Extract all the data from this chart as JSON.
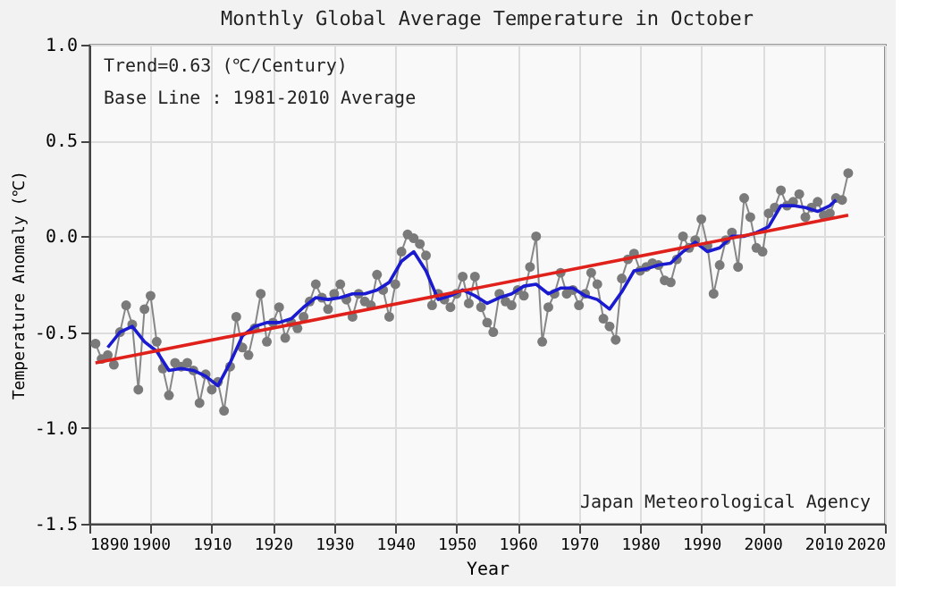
{
  "chart_data": {
    "type": "line",
    "title": "Monthly Global Average Temperature in October",
    "xlabel": "Year",
    "ylabel": "Temperature Anomaly (℃)",
    "annotations": [
      "Trend=0.63 (℃/Century)",
      "Base Line : 1981-2010 Average",
      "Japan Meteorological Agency"
    ],
    "xlim": [
      1890,
      2020
    ],
    "xticks": [
      1890,
      1900,
      1910,
      1920,
      1930,
      1940,
      1950,
      1960,
      1970,
      1980,
      1990,
      2000,
      2010,
      2020
    ],
    "ylim": [
      -1.5,
      1.0
    ],
    "yticks": [
      {
        "value": -1.5,
        "label": "-1.5"
      },
      {
        "value": -1.0,
        "label": "-1.0"
      },
      {
        "value": -0.5,
        "label": "-0.5"
      },
      {
        "value": 0,
        "label": "0.0"
      },
      {
        "value": 0.5,
        "label": "0.5"
      },
      {
        "value": 1.0,
        "label": "1.0"
      }
    ],
    "grid": true,
    "series": [
      {
        "color": "#7a7a7a",
        "marker": "circle",
        "x": [
          1891,
          1892,
          1893,
          1894,
          1895,
          1896,
          1897,
          1898,
          1899,
          1900,
          1901,
          1902,
          1903,
          1904,
          1905,
          1906,
          1907,
          1908,
          1909,
          1910,
          1911,
          1912,
          1913,
          1914,
          1915,
          1916,
          1917,
          1918,
          1919,
          1920,
          1921,
          1922,
          1923,
          1924,
          1925,
          1926,
          1927,
          1928,
          1929,
          1930,
          1931,
          1932,
          1933,
          1934,
          1935,
          1936,
          1937,
          1938,
          1939,
          1940,
          1941,
          1942,
          1943,
          1944,
          1945,
          1946,
          1947,
          1948,
          1949,
          1950,
          1951,
          1952,
          1953,
          1954,
          1955,
          1956,
          1957,
          1958,
          1959,
          1960,
          1961,
          1962,
          1963,
          1964,
          1965,
          1966,
          1967,
          1968,
          1969,
          1970,
          1971,
          1972,
          1973,
          1974,
          1975,
          1976,
          1977,
          1978,
          1979,
          1980,
          1981,
          1982,
          1983,
          1984,
          1985,
          1986,
          1987,
          1988,
          1989,
          1990,
          1991,
          1992,
          1993,
          1994,
          1995,
          1996,
          1997,
          1998,
          1999,
          2000,
          2001,
          2002,
          2003,
          2004,
          2005,
          2006,
          2007,
          2008,
          2009,
          2010,
          2011,
          2012,
          2013,
          2014
        ],
        "values": [
          -0.56,
          -0.64,
          -0.62,
          -0.67,
          -0.5,
          -0.36,
          -0.46,
          -0.8,
          -0.38,
          -0.31,
          -0.55,
          -0.69,
          -0.83,
          -0.66,
          -0.68,
          -0.66,
          -0.7,
          -0.87,
          -0.72,
          -0.8,
          -0.76,
          -0.91,
          -0.68,
          -0.42,
          -0.58,
          -0.62,
          -0.48,
          -0.3,
          -0.55,
          -0.45,
          -0.37,
          -0.53,
          -0.45,
          -0.48,
          -0.42,
          -0.34,
          -0.25,
          -0.32,
          -0.38,
          -0.3,
          -0.25,
          -0.33,
          -0.42,
          -0.3,
          -0.34,
          -0.36,
          -0.2,
          -0.28,
          -0.42,
          -0.25,
          -0.08,
          0.01,
          -0.01,
          -0.04,
          -0.1,
          -0.36,
          -0.3,
          -0.33,
          -0.37,
          -0.3,
          -0.21,
          -0.35,
          -0.21,
          -0.37,
          -0.45,
          -0.5,
          -0.3,
          -0.34,
          -0.36,
          -0.28,
          -0.31,
          -0.16,
          0.0,
          -0.55,
          -0.37,
          -0.3,
          -0.19,
          -0.3,
          -0.28,
          -0.36,
          -0.3,
          -0.19,
          -0.25,
          -0.43,
          -0.47,
          -0.54,
          -0.22,
          -0.12,
          -0.09,
          -0.18,
          -0.16,
          -0.14,
          -0.15,
          -0.23,
          -0.24,
          -0.12,
          0.0,
          -0.06,
          -0.02,
          0.09,
          -0.05,
          -0.3,
          -0.15,
          -0.02,
          0.02,
          -0.16,
          0.2,
          0.1,
          -0.06,
          -0.08,
          0.12,
          0.15,
          0.24,
          0.16,
          0.18,
          0.22,
          0.1,
          0.15,
          0.18,
          0.11,
          0.12,
          0.2,
          0.19,
          0.33
        ]
      },
      {
        "color": "#1a1ad0",
        "x": [
          1893,
          1895,
          1897,
          1899,
          1901,
          1903,
          1905,
          1907,
          1909,
          1911,
          1913,
          1915,
          1917,
          1919,
          1921,
          1923,
          1925,
          1927,
          1929,
          1931,
          1933,
          1935,
          1937,
          1939,
          1941,
          1943,
          1945,
          1947,
          1949,
          1951,
          1953,
          1955,
          1957,
          1959,
          1961,
          1963,
          1965,
          1967,
          1969,
          1971,
          1973,
          1975,
          1977,
          1979,
          1981,
          1983,
          1985,
          1987,
          1989,
          1991,
          1993,
          1995,
          1997,
          1999,
          2001,
          2003,
          2005,
          2007,
          2009,
          2011,
          2012
        ],
        "values": [
          -0.58,
          -0.5,
          -0.47,
          -0.55,
          -0.6,
          -0.7,
          -0.69,
          -0.7,
          -0.73,
          -0.78,
          -0.66,
          -0.52,
          -0.47,
          -0.45,
          -0.45,
          -0.43,
          -0.37,
          -0.32,
          -0.33,
          -0.32,
          -0.3,
          -0.3,
          -0.28,
          -0.24,
          -0.13,
          -0.08,
          -0.18,
          -0.33,
          -0.31,
          -0.28,
          -0.31,
          -0.35,
          -0.32,
          -0.3,
          -0.26,
          -0.25,
          -0.3,
          -0.27,
          -0.27,
          -0.31,
          -0.33,
          -0.38,
          -0.29,
          -0.18,
          -0.17,
          -0.15,
          -0.14,
          -0.08,
          -0.03,
          -0.08,
          -0.06,
          0.0,
          0.0,
          0.02,
          0.05,
          0.16,
          0.16,
          0.15,
          0.13,
          0.16,
          0.19
        ]
      },
      {
        "color": "#e0201a",
        "x": [
          1891,
          2014
        ],
        "values": [
          -0.66,
          0.11
        ]
      }
    ]
  }
}
